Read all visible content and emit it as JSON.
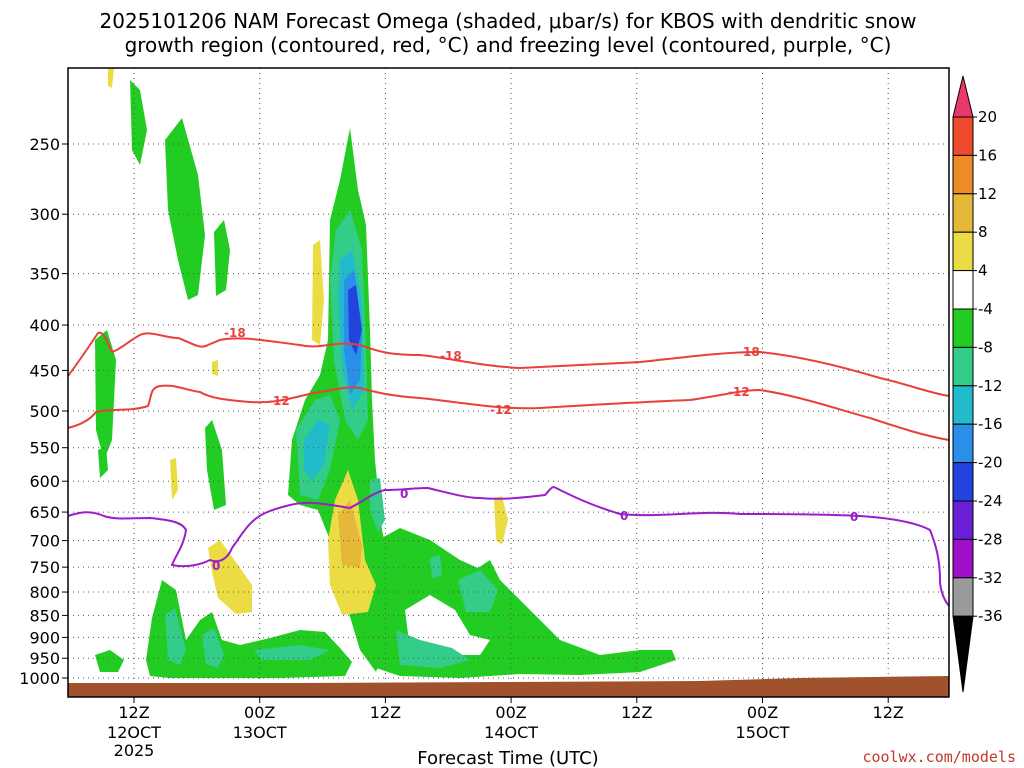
{
  "chart_data": {
    "type": "heatmap",
    "title_line1": "2025101206 NAM Forecast Omega (shaded, μbar/s) for KBOS with dendritic snow",
    "title_line2": "growth region (contoured, red, °C) and freezing level (contoured, purple, °C)",
    "xlabel": "Forecast Time (UTC)",
    "y_ticks": [
      "250",
      "300",
      "350",
      "400",
      "450",
      "500",
      "550",
      "600",
      "650",
      "700",
      "750",
      "800",
      "850",
      "900",
      "950",
      "1000"
    ],
    "x_ticks": [
      {
        "label": "12Z",
        "date": "12OCT",
        "year": "2025"
      },
      {
        "label": "00Z",
        "date": "13OCT",
        "year": ""
      },
      {
        "label": "12Z",
        "date": "",
        "year": ""
      },
      {
        "label": "00Z",
        "date": "14OCT",
        "year": ""
      },
      {
        "label": "12Z",
        "date": "",
        "year": ""
      },
      {
        "label": "00Z",
        "date": "15OCT",
        "year": ""
      },
      {
        "label": "12Z",
        "date": "",
        "year": ""
      }
    ],
    "colorbar": {
      "labels": [
        "20",
        "16",
        "12",
        "8",
        "4",
        "-4",
        "-8",
        "-12",
        "-16",
        "-20",
        "-24",
        "-28",
        "-32",
        "-36"
      ],
      "colors": [
        "#e8396a",
        "#f04a2e",
        "#ef8a2a",
        "#e6b83a",
        "#ecdc44",
        "#ffffff",
        "#22cc22",
        "#33cc88",
        "#22bbcc",
        "#2a8fe8",
        "#2244dd",
        "#6a1fd6",
        "#a010c8",
        "#9a9a9a",
        "#000000"
      ]
    },
    "contours": {
      "red_levels": [
        "-18",
        "-12"
      ],
      "purple_levels": [
        "0"
      ]
    },
    "credit": "coolwx.com/models"
  }
}
